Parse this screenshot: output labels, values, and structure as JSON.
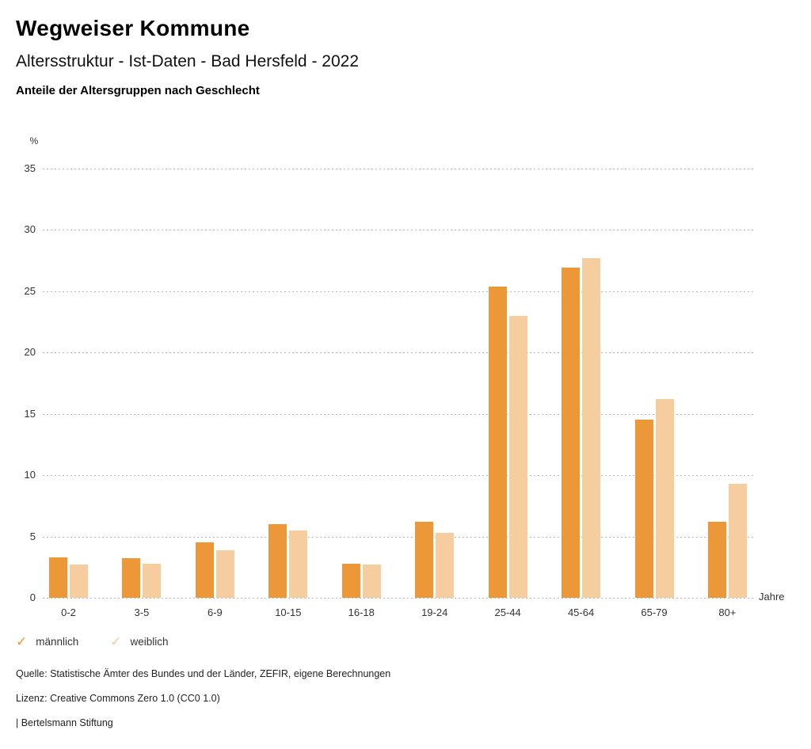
{
  "header": {
    "title": "Wegweiser Kommune",
    "subtitle": "Altersstruktur - Ist-Daten - Bad Hersfeld - 2022",
    "heading": "Anteile der Altersgruppen nach Geschlecht"
  },
  "chart_data": {
    "type": "bar",
    "title": "Anteile der Altersgruppen nach Geschlecht",
    "categories": [
      "0-2",
      "3-5",
      "6-9",
      "10-15",
      "16-18",
      "19-24",
      "25-44",
      "45-64",
      "65-79",
      "80+"
    ],
    "series": [
      {
        "name": "männlich",
        "color": "#EC9838",
        "values": [
          3.3,
          3.2,
          4.5,
          6.0,
          2.8,
          6.2,
          25.4,
          26.9,
          14.5,
          6.2
        ]
      },
      {
        "name": "weiblich",
        "color": "#F5CD9E",
        "values": [
          2.7,
          2.8,
          3.9,
          5.5,
          2.7,
          5.3,
          23.0,
          27.7,
          16.2,
          9.3
        ]
      }
    ],
    "ylabel": "%",
    "xlabel": "Jahre",
    "ylim": [
      0,
      35
    ],
    "yticks": [
      0,
      5,
      10,
      15,
      20,
      25,
      30,
      35
    ],
    "grid": "horizontal-dotted",
    "gridline_color": "#b8b8b8",
    "legend_position": "bottom-left",
    "legend_icon": "check-icon"
  },
  "footer": {
    "source": "Quelle: Statistische Ämter des Bundes und der Länder, ZEFIR, eigene Berechnungen",
    "license": "Lizenz: Creative Commons Zero 1.0 (CC0 1.0)",
    "attribution": "| Bertelsmann Stiftung"
  }
}
